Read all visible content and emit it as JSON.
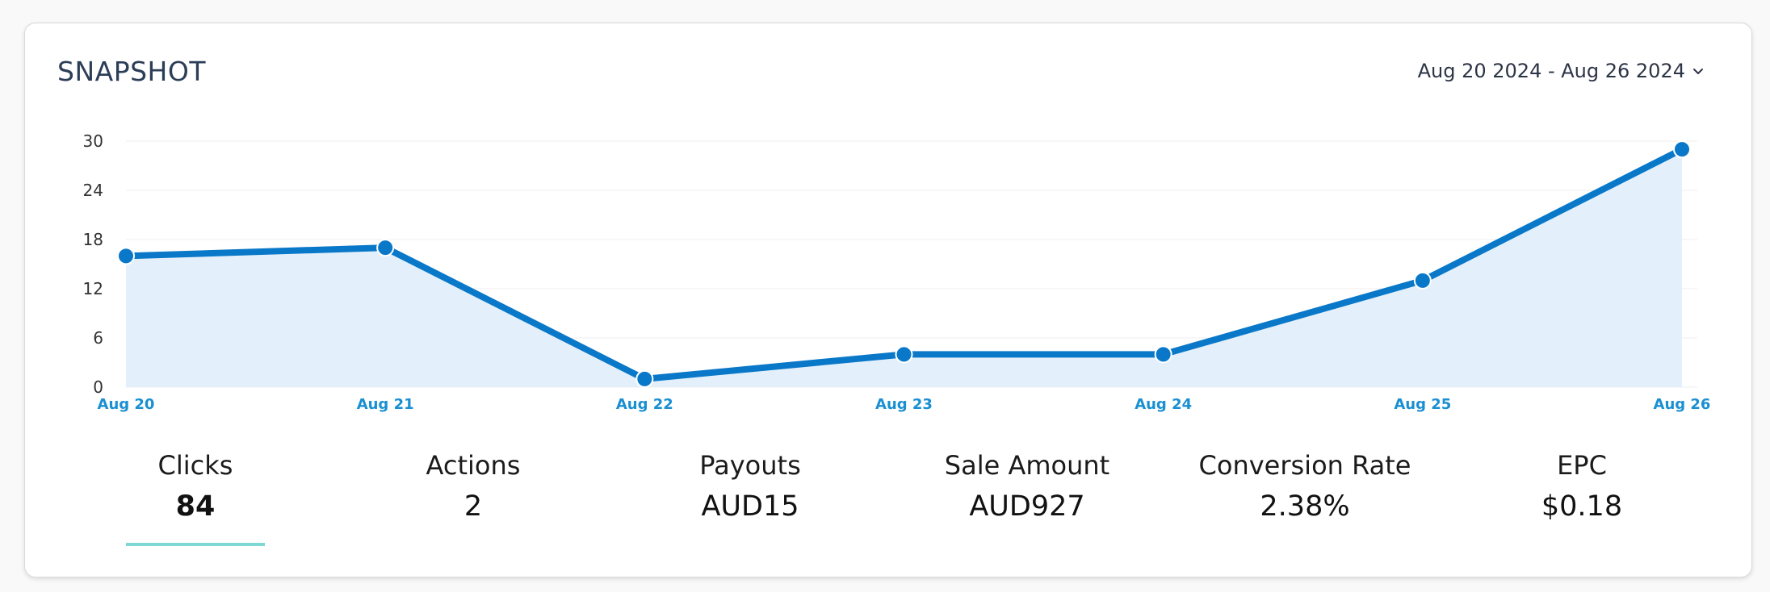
{
  "header": {
    "title": "SNAPSHOT",
    "date_range": "Aug 20 2024 - Aug 26 2024"
  },
  "colors": {
    "line": "#0a78c8",
    "area": "#e3f0fb",
    "underline": "#7fd8d4"
  },
  "chart_data": {
    "type": "area",
    "categories": [
      "Aug 20",
      "Aug 21",
      "Aug 22",
      "Aug 23",
      "Aug 24",
      "Aug 25",
      "Aug 26"
    ],
    "values": [
      16,
      17,
      1,
      4,
      4,
      13,
      29
    ],
    "y_ticks": [
      "30",
      "24",
      "18",
      "12",
      "6",
      "0"
    ],
    "ylim": [
      0,
      30
    ],
    "grid": true,
    "markers": true
  },
  "stats": [
    {
      "label": "Clicks",
      "value": "84",
      "active": true
    },
    {
      "label": "Actions",
      "value": "2",
      "active": false
    },
    {
      "label": "Payouts",
      "value": "AUD15",
      "active": false
    },
    {
      "label": "Sale Amount",
      "value": "AUD927",
      "active": false
    },
    {
      "label": "Conversion Rate",
      "value": "2.38%",
      "active": false
    },
    {
      "label": "EPC",
      "value": "$0.18",
      "active": false
    }
  ]
}
